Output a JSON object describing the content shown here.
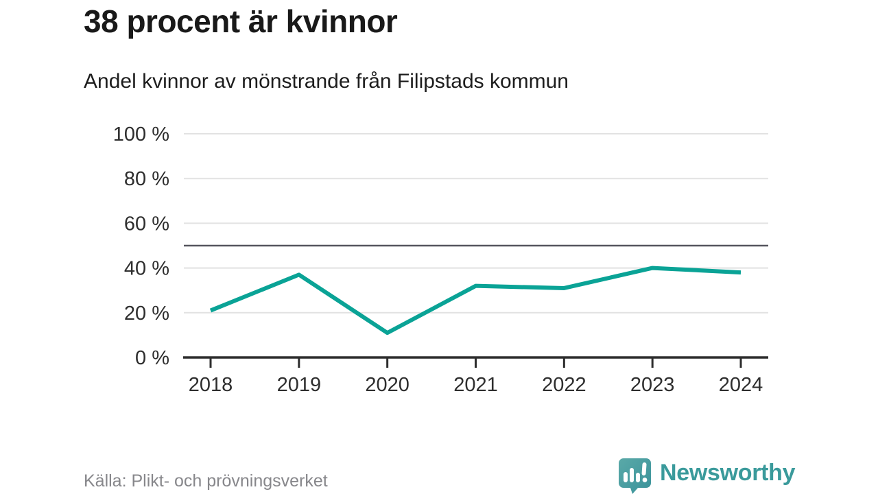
{
  "header": {
    "title": "38 procent är kvinnor",
    "subtitle": "Andel kvinnor av mönstrande från Filipstads kommun"
  },
  "chart_data": {
    "type": "line",
    "x": [
      "2018",
      "2019",
      "2020",
      "2021",
      "2022",
      "2023",
      "2024"
    ],
    "series": [
      {
        "name": "Andel kvinnor av mönstrande",
        "values": [
          21,
          37,
          11,
          32,
          31,
          40,
          38
        ]
      }
    ],
    "ylim": [
      0,
      100
    ],
    "yticks": [
      0,
      20,
      40,
      60,
      80,
      100
    ],
    "ytick_suffix": " %",
    "reference_line": 50,
    "grid": true,
    "legend": "none",
    "title": "38 procent är kvinnor",
    "xlabel": "",
    "ylabel": ""
  },
  "colors": {
    "line": "#0aa396",
    "gridline": "#e2e2e2",
    "reference_line": "#55555e",
    "axis": "#2d2d2d",
    "tick_label": "#2e2e2e",
    "brand_teal": "#3a9a9b"
  },
  "footer": {
    "source": "Källa: Plikt- och prövningsverket",
    "brand": "Newsworthy"
  },
  "icons": {
    "logo_mark": "speech-bubble-bar-chart-icon"
  }
}
